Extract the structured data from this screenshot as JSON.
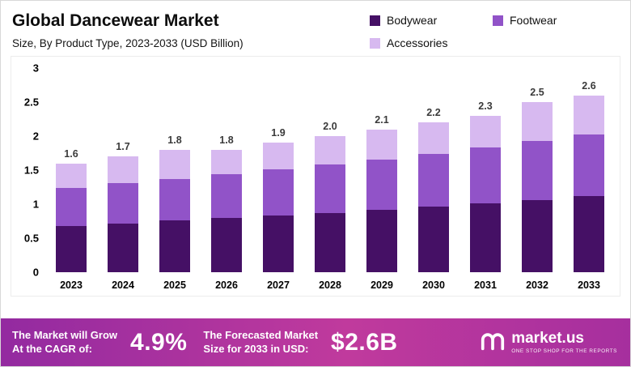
{
  "header": {
    "title": "Global Dancewear Market",
    "subtitle": "Size, By Product Type, 2023-2033 (USD Billion)"
  },
  "legend": [
    {
      "label": "Bodywear",
      "color": "#451065"
    },
    {
      "label": "Footwear",
      "color": "#9153c8"
    },
    {
      "label": "Accessories",
      "color": "#d7b9f0"
    }
  ],
  "chart_data": {
    "type": "bar",
    "stacked": true,
    "title": "Global Dancewear Market",
    "subtitle": "Size, By Product Type, 2023-2033 (USD Billion)",
    "unit": "USD Billion",
    "grid": false,
    "legend_position": "top-right",
    "categories": [
      "2023",
      "2024",
      "2025",
      "2026",
      "2027",
      "2028",
      "2029",
      "2030",
      "2031",
      "2032",
      "2033"
    ],
    "series": [
      {
        "name": "Bodywear",
        "color": "#451065",
        "values": [
          0.68,
          0.72,
          0.76,
          0.8,
          0.83,
          0.87,
          0.92,
          0.97,
          1.01,
          1.06,
          1.12
        ]
      },
      {
        "name": "Footwear",
        "color": "#9153c8",
        "values": [
          0.56,
          0.59,
          0.61,
          0.64,
          0.68,
          0.71,
          0.74,
          0.77,
          0.82,
          0.87,
          0.9
        ]
      },
      {
        "name": "Accessories",
        "color": "#d7b9f0",
        "values": [
          0.36,
          0.39,
          0.43,
          0.36,
          0.39,
          0.42,
          0.44,
          0.46,
          0.47,
          0.57,
          0.58
        ]
      }
    ],
    "totals": [
      "1.6",
      "1.7",
      "1.8",
      "1.8",
      "1.9",
      "2.0",
      "2.1",
      "2.2",
      "2.3",
      "2.5",
      "2.6"
    ],
    "y_ticks": [
      "3",
      "2.5",
      "2",
      "1.5",
      "1",
      "0.5",
      "0"
    ],
    "ylim": [
      0,
      3
    ]
  },
  "footer": {
    "cagr_label": "The Market will Grow\nAt the CAGR of:",
    "cagr_value": "4.9%",
    "forecast_label": "The Forecasted Market\nSize for 2033 in USD:",
    "forecast_value": "$2.6B",
    "brand": "market.us",
    "brand_tagline": "ONE STOP SHOP FOR THE REPORTS"
  }
}
